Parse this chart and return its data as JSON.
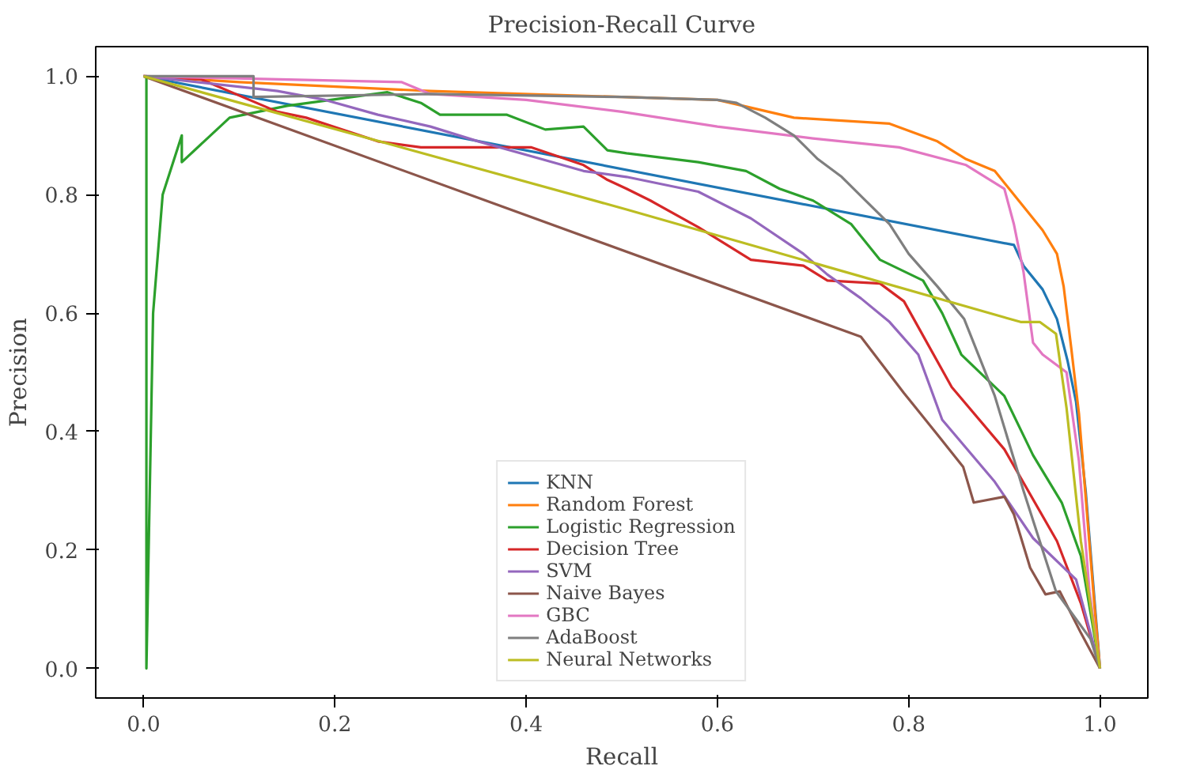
{
  "chart_data": {
    "type": "line",
    "title": "Precision-Recall Curve",
    "xlabel": "Recall",
    "ylabel": "Precision",
    "xlim": [
      -0.05,
      1.05
    ],
    "ylim": [
      -0.05,
      1.05
    ],
    "xticks": [
      {
        "value": 0,
        "label": "0.0"
      },
      0.2,
      0.4,
      0.6,
      0.8,
      {
        "value": 1,
        "label": "1.0"
      }
    ],
    "yticks": [
      {
        "value": 0,
        "label": "0.0"
      },
      0.2,
      0.4,
      0.6,
      0.8,
      {
        "value": 1,
        "label": "1.0"
      }
    ],
    "grid": false,
    "legend": "bottom",
    "line_style": "solid",
    "marker": "none",
    "series": [
      {
        "name": "KNN",
        "color": "#1f77b4",
        "x": [
          0,
          0.91,
          0.92,
          0.94,
          0.955,
          0.966,
          0.975,
          0.985,
          0.995,
          1.0
        ],
        "values": [
          1.0,
          0.715,
          0.68,
          0.64,
          0.59,
          0.52,
          0.45,
          0.3,
          0.1,
          0
        ]
      },
      {
        "name": "Random Forest",
        "color": "#ff7f0e",
        "x": [
          0,
          0.1,
          0.3,
          0.5,
          0.6,
          0.68,
          0.78,
          0.83,
          0.86,
          0.89,
          0.905,
          0.92,
          0.94,
          0.955,
          0.962,
          0.97,
          0.978,
          0.986,
          0.994,
          1.0
        ],
        "values": [
          1.0,
          0.99,
          0.975,
          0.965,
          0.96,
          0.93,
          0.92,
          0.89,
          0.86,
          0.84,
          0.81,
          0.78,
          0.74,
          0.7,
          0.645,
          0.54,
          0.43,
          0.27,
          0.11,
          0
        ]
      },
      {
        "name": "Logistic Regression",
        "color": "#2ca02c",
        "x": [
          0.003,
          0.003,
          0.003,
          0.01,
          0.02,
          0.04,
          0.04,
          0.09,
          0.15,
          0.255,
          0.29,
          0.31,
          0.38,
          0.42,
          0.46,
          0.485,
          0.505,
          0.58,
          0.63,
          0.665,
          0.7,
          0.74,
          0.77,
          0.815,
          0.835,
          0.855,
          0.9,
          0.93,
          0.96,
          0.98,
          1.0
        ],
        "values": [
          0,
          1.0,
          0,
          0.6,
          0.8,
          0.9,
          0.855,
          0.93,
          0.95,
          0.973,
          0.955,
          0.935,
          0.935,
          0.91,
          0.915,
          0.875,
          0.87,
          0.855,
          0.84,
          0.81,
          0.79,
          0.75,
          0.69,
          0.655,
          0.6,
          0.53,
          0.46,
          0.36,
          0.28,
          0.19,
          0
        ]
      },
      {
        "name": "Decision Tree",
        "color": "#d62728",
        "x": [
          0,
          0.06,
          0.14,
          0.17,
          0.245,
          0.29,
          0.405,
          0.46,
          0.485,
          0.505,
          0.53,
          0.58,
          0.635,
          0.69,
          0.715,
          0.77,
          0.795,
          0.845,
          0.9,
          0.955,
          0.98,
          1.0
        ],
        "values": [
          1.0,
          0.995,
          0.94,
          0.93,
          0.89,
          0.88,
          0.88,
          0.85,
          0.825,
          0.81,
          0.79,
          0.745,
          0.69,
          0.68,
          0.655,
          0.65,
          0.62,
          0.475,
          0.37,
          0.215,
          0.11,
          0
        ]
      },
      {
        "name": "SVM",
        "color": "#9467bd",
        "x": [
          0,
          0.14,
          0.19,
          0.245,
          0.3,
          0.35,
          0.405,
          0.46,
          0.505,
          0.58,
          0.635,
          0.69,
          0.715,
          0.75,
          0.78,
          0.81,
          0.835,
          0.89,
          0.93,
          0.975,
          1.0
        ],
        "values": [
          1.0,
          0.975,
          0.96,
          0.935,
          0.915,
          0.89,
          0.865,
          0.84,
          0.83,
          0.805,
          0.76,
          0.7,
          0.665,
          0.625,
          0.585,
          0.53,
          0.42,
          0.315,
          0.22,
          0.15,
          0
        ]
      },
      {
        "name": "Naive Bayes",
        "color": "#8c564b",
        "x": [
          0,
          0.75,
          0.795,
          0.83,
          0.857,
          0.868,
          0.9,
          0.91,
          0.927,
          0.943,
          0.958,
          0.98,
          1.0
        ],
        "values": [
          1.0,
          0.56,
          0.465,
          0.395,
          0.34,
          0.28,
          0.29,
          0.26,
          0.17,
          0.125,
          0.13,
          0.06,
          0
        ]
      },
      {
        "name": "GBC",
        "color": "#e377c2",
        "x": [
          0,
          0.27,
          0.3,
          0.4,
          0.5,
          0.6,
          0.7,
          0.79,
          0.86,
          0.89,
          0.9,
          0.91,
          0.92,
          0.93,
          0.94,
          0.965,
          0.978,
          0.989,
          1.0
        ],
        "values": [
          1.0,
          0.99,
          0.97,
          0.96,
          0.94,
          0.915,
          0.895,
          0.88,
          0.85,
          0.82,
          0.81,
          0.75,
          0.67,
          0.55,
          0.53,
          0.5,
          0.35,
          0.13,
          0
        ]
      },
      {
        "name": "AdaBoost",
        "color": "#7f7f7f",
        "x": [
          0,
          0.115,
          0.115,
          0.3,
          0.5,
          0.6,
          0.62,
          0.65,
          0.68,
          0.705,
          0.73,
          0.755,
          0.78,
          0.8,
          0.83,
          0.858,
          0.89,
          0.92,
          0.954,
          0.99,
          1.0
        ],
        "values": [
          1.0,
          1.0,
          0.965,
          0.97,
          0.965,
          0.96,
          0.955,
          0.93,
          0.9,
          0.86,
          0.83,
          0.79,
          0.75,
          0.7,
          0.645,
          0.59,
          0.46,
          0.3,
          0.13,
          0.05,
          0
        ]
      },
      {
        "name": "Neural Networks",
        "color": "#bcbd22",
        "x": [
          0,
          0.505,
          0.917,
          0.937,
          0.954,
          0.965,
          0.98,
          1.0
        ],
        "values": [
          1.0,
          0.775,
          0.585,
          0.585,
          0.565,
          0.44,
          0.215,
          0
        ]
      }
    ]
  }
}
